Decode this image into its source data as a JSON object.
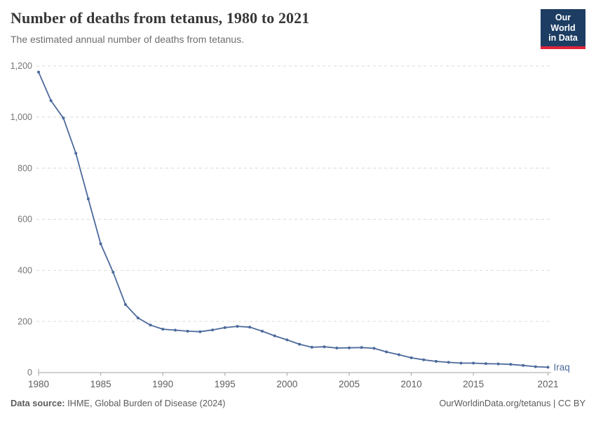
{
  "header": {
    "title": "Number of deaths from tetanus, 1980 to 2021",
    "subtitle": "The estimated annual number of deaths from tetanus.",
    "logo": {
      "line1": "Our World",
      "line2": "in Data",
      "bg": "#1d3d63",
      "accent": "#e0243a"
    }
  },
  "chart_data": {
    "type": "line",
    "title": "Number of deaths from tetanus, 1980 to 2021",
    "xlabel": "",
    "ylabel": "",
    "xlim": [
      1980,
      2021
    ],
    "ylim": [
      0,
      1200
    ],
    "grid": "horizontal-dashed",
    "legend_position": "end-of-line-label",
    "x_ticks": [
      1980,
      1985,
      1990,
      1995,
      2000,
      2005,
      2010,
      2015,
      2021
    ],
    "y_ticks": [
      0,
      200,
      400,
      600,
      800,
      1000,
      1200
    ],
    "y_tick_labels": [
      "0",
      "200",
      "400",
      "600",
      "800",
      "1,000",
      "1,200"
    ],
    "end_label": "Iraq",
    "series": [
      {
        "name": "Iraq",
        "color": "#4c6a9c",
        "x": [
          1980,
          1981,
          1982,
          1983,
          1984,
          1985,
          1986,
          1987,
          1988,
          1989,
          1990,
          1991,
          1992,
          1993,
          1994,
          1995,
          1996,
          1997,
          1998,
          1999,
          2000,
          2001,
          2002,
          2003,
          2004,
          2005,
          2006,
          2007,
          2008,
          2009,
          2010,
          2011,
          2012,
          2013,
          2014,
          2015,
          2016,
          2017,
          2018,
          2019,
          2020,
          2021
        ],
        "values": [
          1176,
          1064,
          996,
          858,
          680,
          504,
          393,
          266,
          214,
          186,
          170,
          166,
          162,
          160,
          167,
          176,
          181,
          178,
          162,
          144,
          128,
          111,
          99,
          101,
          96,
          97,
          98,
          95,
          81,
          70,
          58,
          50,
          44,
          40,
          37,
          37,
          35,
          34,
          32,
          28,
          23,
          21
        ]
      }
    ],
    "colors": {
      "grid": "#dadada",
      "axis": "#a3a3a3",
      "y_label": "#767676",
      "x_label": "#5e5e5e"
    }
  },
  "footer": {
    "source_label": "Data source:",
    "source_text": " IHME, Global Burden of Disease (2024)",
    "credit": "OurWorldinData.org/tetanus | CC BY"
  }
}
